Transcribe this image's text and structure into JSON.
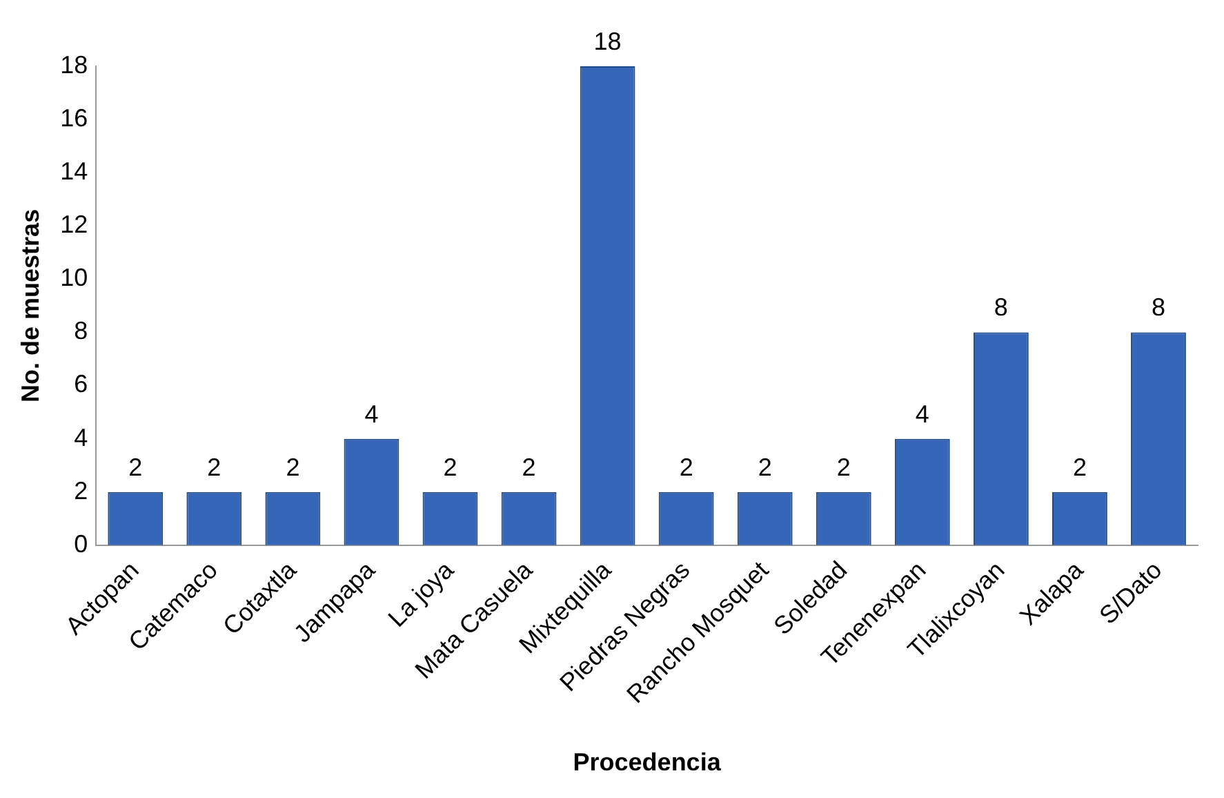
{
  "chart_data": {
    "type": "bar",
    "xlabel": "Procedencia",
    "ylabel": "No. de muestras",
    "categories": [
      "Actopan",
      "Catemaco",
      "Cotaxtla",
      "Jampapa",
      "La joya",
      "Mata Casuela",
      "Mixtequilla",
      "Piedras Negras",
      "Rancho Mosquet",
      "Soledad",
      "Tenenexpan",
      "Tlalixcoyan",
      "Xalapa",
      "S/Dato"
    ],
    "values": [
      2,
      2,
      2,
      4,
      2,
      2,
      18,
      2,
      2,
      2,
      4,
      8,
      2,
      8
    ],
    "color": "#3566b8",
    "ylim": [
      0,
      18
    ],
    "yticks": [
      0,
      2,
      4,
      6,
      8,
      10,
      12,
      14,
      16,
      18
    ],
    "grid": false,
    "legend": false,
    "data_labels": true
  }
}
